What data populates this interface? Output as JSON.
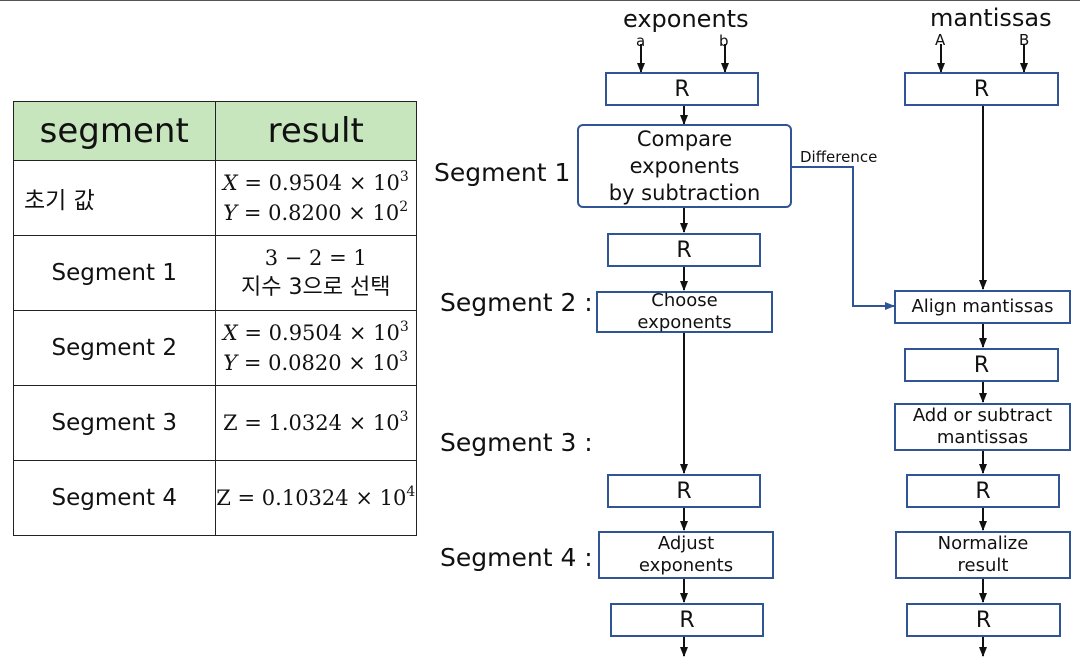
{
  "table": {
    "headers": [
      "segment",
      "result"
    ],
    "rows": [
      {
        "segment": "초기 값",
        "lines": [
          {
            "var": "X",
            "rest": " = 0.9504 × 10",
            "exp": "3"
          },
          {
            "var": "Y",
            "rest": " = 0.8200 × 10",
            "exp": "2"
          }
        ]
      },
      {
        "segment": "Segment 1",
        "line1": "3 − 2 = 1",
        "line2": "지수 3으로 선택"
      },
      {
        "segment": "Segment 2",
        "lines": [
          {
            "var": "X",
            "rest": " = 0.9504 × 10",
            "exp": "3"
          },
          {
            "var": "Y",
            "rest": " = 0.0820 × 10",
            "exp": "3"
          }
        ]
      },
      {
        "segment": "Segment 3",
        "base": "Z = 1.0324 × 10",
        "exp": "3"
      },
      {
        "segment": "Segment 4",
        "base": "Z = 0.10324 × 10",
        "exp": "4"
      }
    ]
  },
  "diagram": {
    "exponents_heading": "exponents",
    "mantissas_heading": "mantissas",
    "input_a": "a",
    "input_b": "b",
    "input_A": "A",
    "input_B": "B",
    "register_label": "R",
    "segment_labels": [
      "Segment 1 :",
      "Segment 2 :",
      "Segment 3 :",
      "Segment 4 :"
    ],
    "compare_lines": [
      "Compare",
      "exponents",
      "by subtraction"
    ],
    "difference_label": "Difference",
    "choose_lines": [
      "Choose",
      "exponents"
    ],
    "adjust_lines": [
      "Adjust",
      "exponents"
    ],
    "align_label": "Align mantissas",
    "add_lines": [
      "Add or subtract",
      "mantissas"
    ],
    "normalize_lines": [
      "Normalize",
      "result"
    ]
  },
  "colors": {
    "box_border": "#2f5597",
    "header_fill": "#c8e6be"
  }
}
